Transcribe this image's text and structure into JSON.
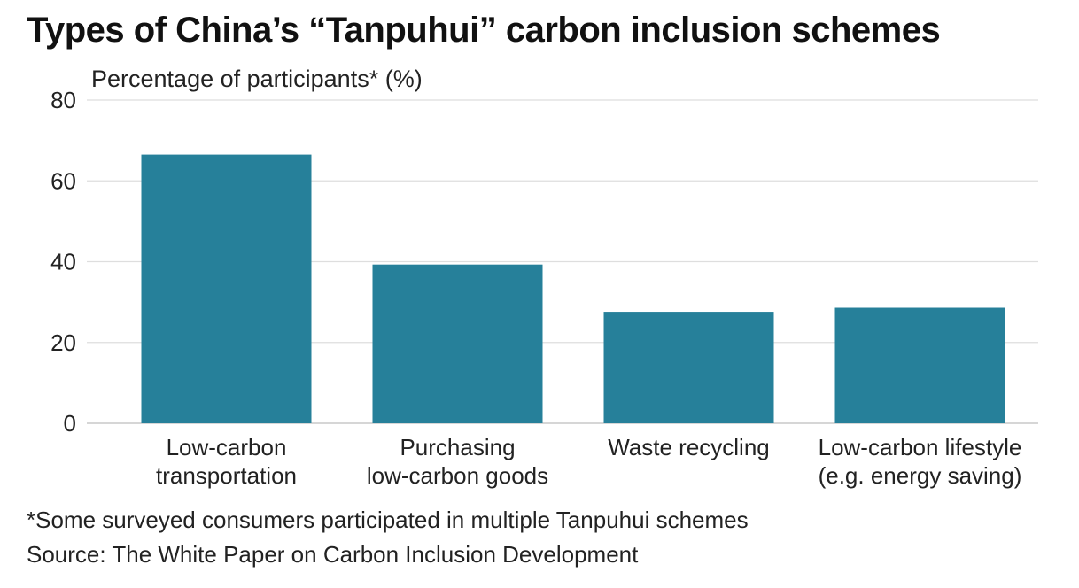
{
  "chart_data": {
    "type": "bar",
    "title": "Types of China’s “Tanpuhui” carbon inclusion schemes",
    "ylabel": "Percentage of participants* (%)",
    "xlabel": "",
    "categories": [
      [
        "Low-carbon",
        "transportation"
      ],
      [
        "Purchasing",
        "low-carbon goods"
      ],
      [
        "Waste recycling"
      ],
      [
        "Low-carbon lifestyle",
        "(e.g. energy saving)"
      ]
    ],
    "values": [
      66.5,
      39.3,
      27.6,
      28.6
    ],
    "ylim": [
      0,
      80
    ],
    "yticks": [
      0,
      20,
      40,
      60,
      80
    ],
    "grid": true,
    "bar_color": "#26809a",
    "footnote": "*Some surveyed consumers participated in multiple Tanpuhui schemes",
    "source": "Source: The White Paper on Carbon Inclusion Development"
  }
}
